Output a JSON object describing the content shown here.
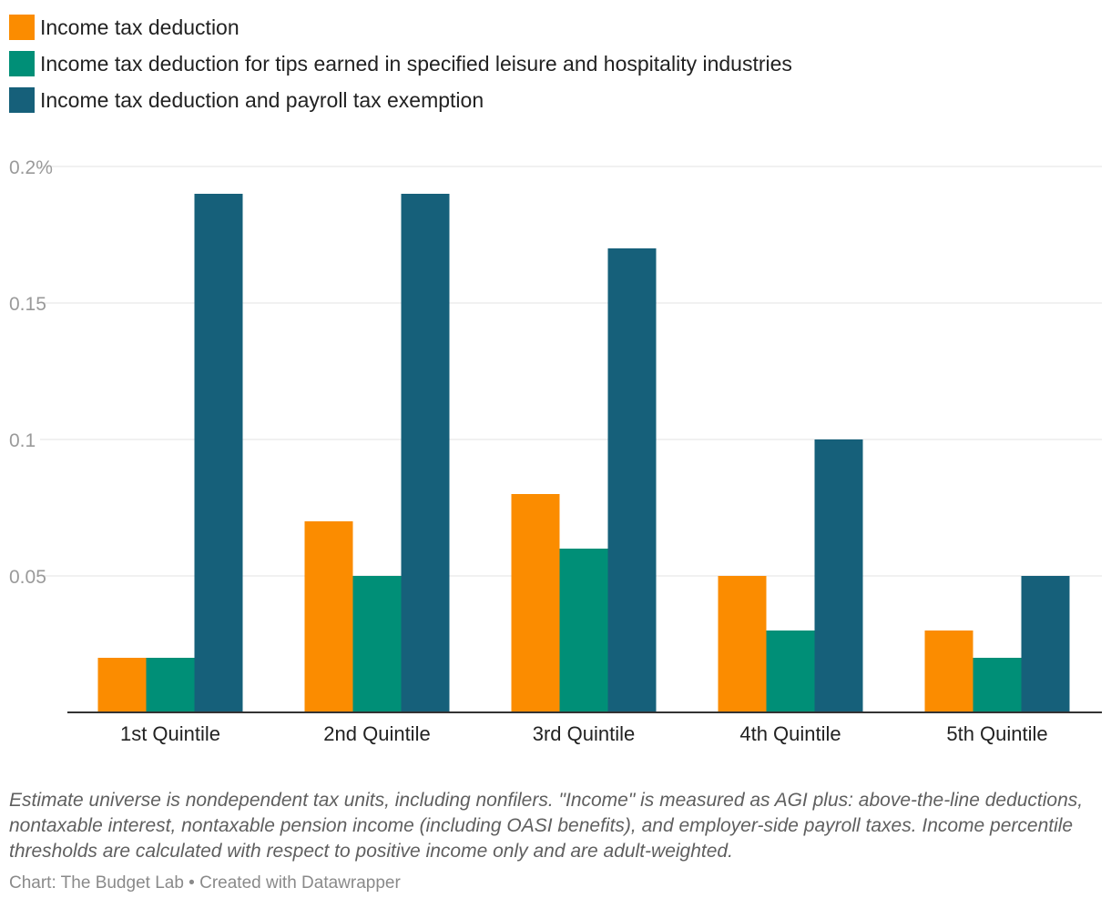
{
  "chart_data": {
    "type": "bar",
    "categories": [
      "1st Quintile",
      "2nd Quintile",
      "3rd Quintile",
      "4th Quintile",
      "5th Quintile"
    ],
    "series": [
      {
        "name": "Income tax deduction",
        "color": "#fb8c00",
        "values": [
          0.02,
          0.07,
          0.08,
          0.05,
          0.03
        ]
      },
      {
        "name": "Income tax deduction for tips earned in specified leisure and hospitality industries",
        "color": "#008f77",
        "values": [
          0.02,
          0.05,
          0.06,
          0.03,
          0.02
        ]
      },
      {
        "name": "Income tax deduction and payroll tax exemption",
        "color": "#16607a",
        "values": [
          0.19,
          0.19,
          0.17,
          0.1,
          0.05
        ]
      }
    ],
    "yticks": [
      {
        "value": 0.05,
        "label": "0.05"
      },
      {
        "value": 0.1,
        "label": "0.1"
      },
      {
        "value": 0.15,
        "label": "0.15"
      },
      {
        "value": 0.2,
        "label": "0.2%"
      }
    ],
    "ylim": [
      0,
      0.2
    ],
    "grid": true,
    "legend_position": "top-left"
  },
  "notes": "Estimate universe is nondependent tax units, including nonfilers. \"Income\" is measured as AGI plus: above-the-line deductions, nontaxable interest, nontaxable pension income (including OASI benefits), and employer-side payroll taxes. Income percentile thresholds are calculated with respect to positive income only and are adult-weighted.",
  "source": "Chart: The Budget Lab • Created with Datawrapper"
}
